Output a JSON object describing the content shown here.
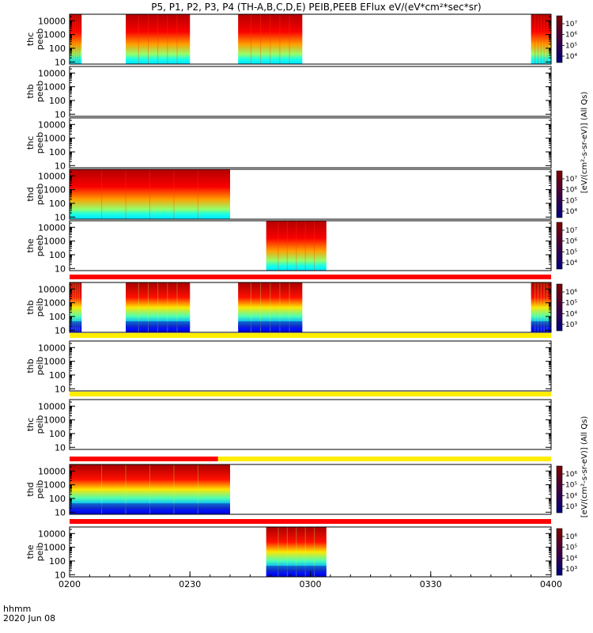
{
  "title": "P5, P1, P2, P3, P4 (TH-A,B,C,D,E) PEIB,PEEB EFlux eV/(eV*cm²*sec*sr)",
  "footer": {
    "time_format": "hhmm",
    "date": "2020 Jun 08"
  },
  "chart_data": {
    "type": "heatmap",
    "x_axis": {
      "ticks": [
        "0200",
        "0230",
        "0300",
        "0330",
        "0400"
      ],
      "range": [
        "0200",
        "0400"
      ]
    },
    "y_axis": {
      "scale": "log",
      "ticks": [
        "10",
        "100",
        "1000",
        "10000"
      ],
      "unit": "eV"
    },
    "colorbar_label_top": "[eV/(cm²-s-sr-eV)] (All Qs)",
    "colorbar_label_bottom": "[eV/(cm²-s-sr-eV)] (All Qs)",
    "panels": [
      {
        "label": [
          "thc",
          "peeb"
        ],
        "colorbar": [
          "10⁷",
          "10⁶",
          "10⁵",
          "10⁴"
        ],
        "segments": [
          [
            "0200",
            "0203"
          ],
          [
            "0214",
            "0230"
          ],
          [
            "0242",
            "0258"
          ],
          [
            "0355",
            "0400"
          ]
        ],
        "style": "peeb"
      },
      {
        "label": [
          "thb",
          "peeb"
        ],
        "colorbar": [],
        "segments": [],
        "style": "peeb"
      },
      {
        "label": [
          "thc",
          "peeb"
        ],
        "colorbar": [],
        "segments": [],
        "style": "peeb"
      },
      {
        "label": [
          "thd",
          "peeb"
        ],
        "colorbar": [
          "10⁷",
          "10⁶",
          "10⁵",
          "10⁴"
        ],
        "segments": [
          [
            "0200",
            "0240"
          ]
        ],
        "style": "peeb"
      },
      {
        "label": [
          "the",
          "peeb"
        ],
        "colorbar": [
          "10⁷",
          "10⁶",
          "10⁵",
          "10⁴"
        ],
        "segments": [
          [
            "0249",
            "0304"
          ]
        ],
        "style": "peeb"
      },
      {
        "label": [
          "thb",
          "peib"
        ],
        "colorbar": [
          "10⁶",
          "10⁵",
          "10⁴",
          "10³"
        ],
        "segments": [
          [
            "0200",
            "0203"
          ],
          [
            "0214",
            "0230"
          ],
          [
            "0242",
            "0258"
          ],
          [
            "0355",
            "0400"
          ]
        ],
        "style": "peib",
        "status_bar": [
          [
            "0200",
            "0400",
            "red"
          ]
        ]
      },
      {
        "label": [
          "thb",
          "peib"
        ],
        "colorbar": [],
        "segments": [],
        "style": "peib",
        "status_bar": [
          [
            "0200",
            "0400",
            "yellow"
          ]
        ]
      },
      {
        "label": [
          "thc",
          "peib"
        ],
        "colorbar": [],
        "segments": [],
        "style": "peib",
        "status_bar": [
          [
            "0200",
            "0400",
            "yellow"
          ]
        ]
      },
      {
        "label": [
          "thd",
          "peib"
        ],
        "colorbar": [
          "10⁶",
          "10⁵",
          "10⁴",
          "10³"
        ],
        "segments": [
          [
            "0200",
            "0240"
          ]
        ],
        "style": "peib",
        "status_bar": [
          [
            "0200",
            "0237",
            "red"
          ],
          [
            "0237",
            "0400",
            "yellow"
          ]
        ]
      },
      {
        "label": [
          "the",
          "peib"
        ],
        "colorbar": [
          "10⁶",
          "10⁵",
          "10⁴",
          "10³"
        ],
        "segments": [
          [
            "0249",
            "0304"
          ]
        ],
        "style": "peib",
        "status_bar": [
          [
            "0200",
            "0400",
            "red"
          ]
        ]
      }
    ]
  }
}
